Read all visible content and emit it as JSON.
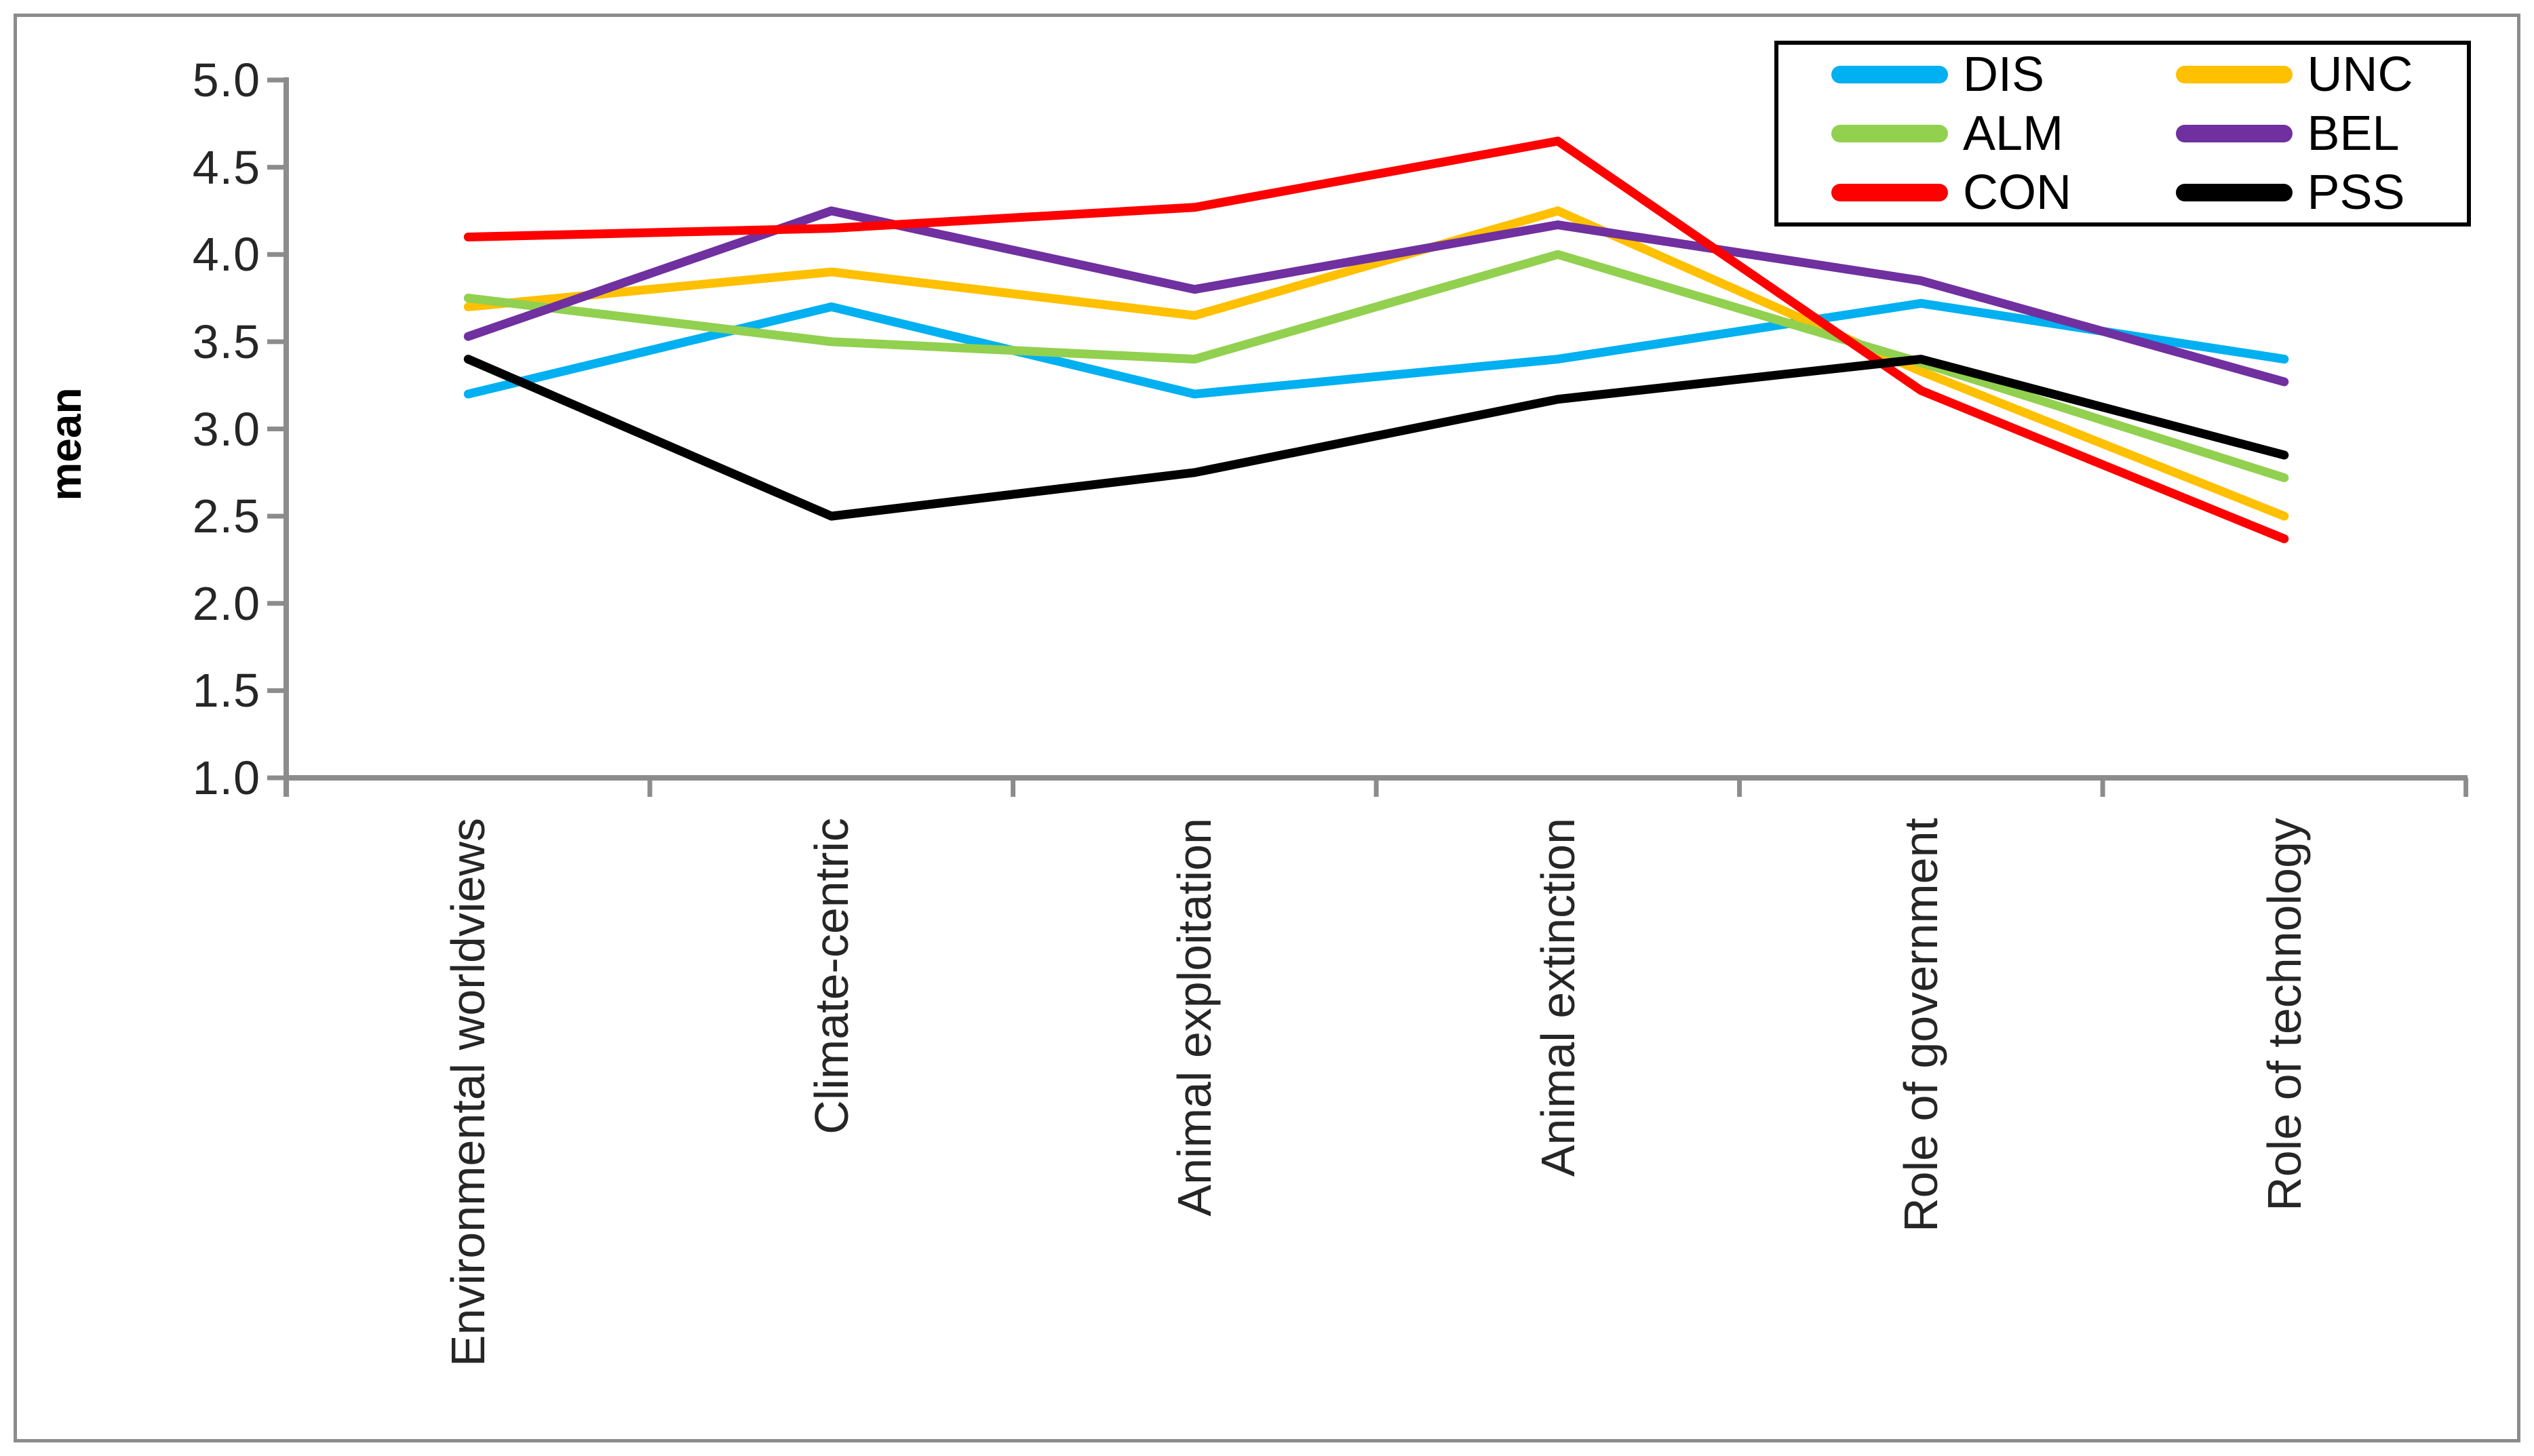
{
  "figure": {
    "background": "#ffffff",
    "border_color": "#8C8C8C",
    "axis_color": "#8C8C8C"
  },
  "legend": {
    "rows": [
      [
        "DIS",
        "UNC"
      ],
      [
        "ALM",
        "BEL"
      ],
      [
        "CON",
        "PSS"
      ]
    ]
  },
  "chart_data": {
    "type": "line",
    "title": "",
    "xlabel": "",
    "ylabel": "mean",
    "ylim": [
      1.0,
      5.0
    ],
    "ytick_step": 0.5,
    "yticks": [
      "5.0",
      "4.5",
      "4.0",
      "3.5",
      "3.0",
      "2.5",
      "2.0",
      "1.5",
      "1.0"
    ],
    "grid": false,
    "legend_position": "top-right",
    "axis_color": "#8C8C8C",
    "categories": [
      "Environmental worldviews",
      "Climate-centric",
      "Animal exploitation",
      "Animal extinction",
      "Role of government",
      "Role of technology"
    ],
    "series": [
      {
        "name": "DIS",
        "color": "#00B0F0",
        "values": [
          3.2,
          3.7,
          3.2,
          3.4,
          3.72,
          3.4
        ]
      },
      {
        "name": "UNC",
        "color": "#FFC000",
        "values": [
          3.7,
          3.9,
          3.65,
          4.25,
          3.33,
          2.5
        ]
      },
      {
        "name": "ALM",
        "color": "#92D050",
        "values": [
          3.75,
          3.5,
          3.4,
          4.0,
          3.38,
          2.72
        ]
      },
      {
        "name": "BEL",
        "color": "#7030A0",
        "values": [
          3.53,
          4.25,
          3.8,
          4.17,
          3.85,
          3.27
        ]
      },
      {
        "name": "CON",
        "color": "#FF0000",
        "values": [
          4.1,
          4.15,
          4.27,
          4.65,
          3.22,
          2.37
        ]
      },
      {
        "name": "PSS",
        "color": "#000000",
        "values": [
          3.4,
          2.5,
          2.75,
          3.17,
          3.4,
          2.85
        ]
      }
    ]
  }
}
